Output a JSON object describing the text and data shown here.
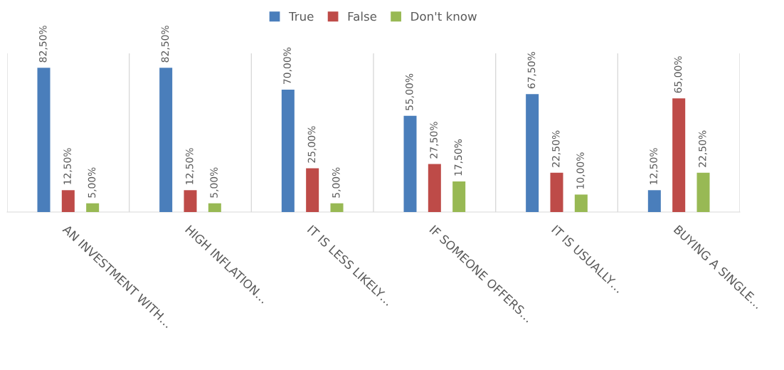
{
  "chart_data": {
    "type": "bar",
    "categories": [
      "AN INVESTMENT WITH…",
      "HIGH INFLATION…",
      "IT IS LESS LIKELY…",
      "IF SOMEONE OFFERS…",
      "IT IS USUALLY…",
      "BUYING A SINGLE…"
    ],
    "series": [
      {
        "name": "True",
        "color": "#4a7ebb",
        "values": [
          82.5,
          82.5,
          70,
          55,
          67.5,
          12.5
        ],
        "value_labels": [
          "82,50%",
          "82,50%",
          "70,00%",
          "55,00%",
          "67,50%",
          "12,50%"
        ]
      },
      {
        "name": "False",
        "color": "#be4b48",
        "values": [
          12.5,
          12.5,
          25,
          27.5,
          22.5,
          65
        ],
        "value_labels": [
          "12,50%",
          "12,50%",
          "25,00%",
          "27,50%",
          "22,50%",
          "65,00%"
        ]
      },
      {
        "name": "Don't know",
        "color": "#98b954",
        "values": [
          5,
          5,
          5,
          17.5,
          10,
          22.5
        ],
        "value_labels": [
          "5,00%",
          "5,00%",
          "5,00%",
          "17,50%",
          "10,00%",
          "22,50%"
        ]
      }
    ],
    "grid": "x",
    "legend": "top"
  }
}
